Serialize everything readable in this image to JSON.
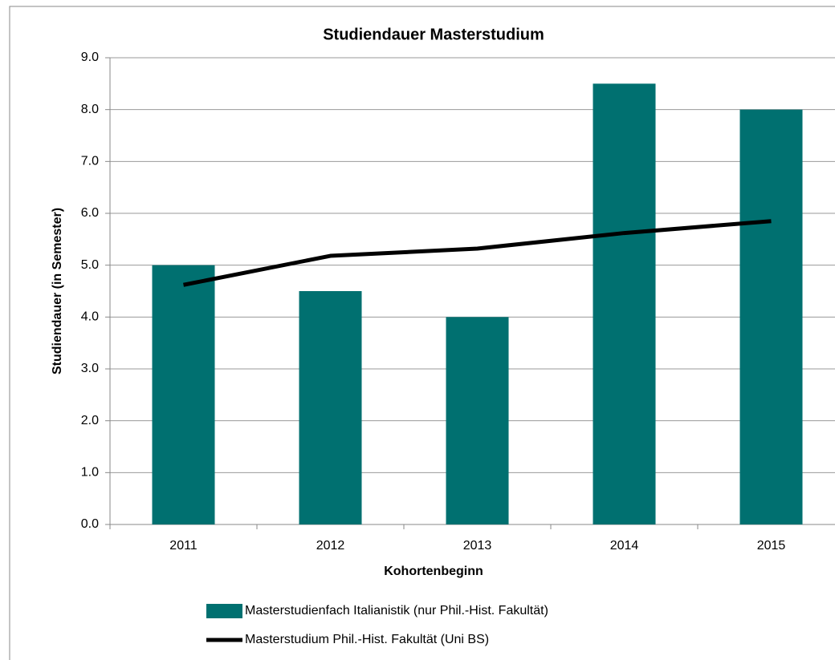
{
  "chart_data": {
    "type": "bar",
    "title": "Studiendauer Masterstudium",
    "x_label": "Kohortenbeginn",
    "y_label": "Studiendauer (in Semester)",
    "categories": [
      "2011",
      "2012",
      "2013",
      "2014",
      "2015"
    ],
    "series": [
      {
        "name": "Masterstudienfach Italianistik (nur Phil.-Hist. Fakultät)",
        "type": "bar",
        "color": "#007070",
        "values": [
          5.0,
          4.5,
          4.0,
          8.5,
          8.0
        ]
      },
      {
        "name": "Masterstudium Phil.-Hist. Fakultät (Uni BS)",
        "type": "line",
        "color": "#000000",
        "values": [
          4.62,
          5.18,
          5.32,
          5.62,
          5.85
        ]
      }
    ],
    "ylim": [
      0,
      9
    ],
    "yticks": [
      {
        "value": 0,
        "label": "0.0"
      },
      {
        "value": 1,
        "label": "1.0"
      },
      {
        "value": 2,
        "label": "2.0"
      },
      {
        "value": 3,
        "label": "3.0"
      },
      {
        "value": 4,
        "label": "4.0"
      },
      {
        "value": 5,
        "label": "5.0"
      },
      {
        "value": 6,
        "label": "6.0"
      },
      {
        "value": 7,
        "label": "7.0"
      },
      {
        "value": 8,
        "label": "8.0"
      },
      {
        "value": 9,
        "label": "9.0"
      }
    ],
    "grid": true,
    "legend": "bottom"
  }
}
